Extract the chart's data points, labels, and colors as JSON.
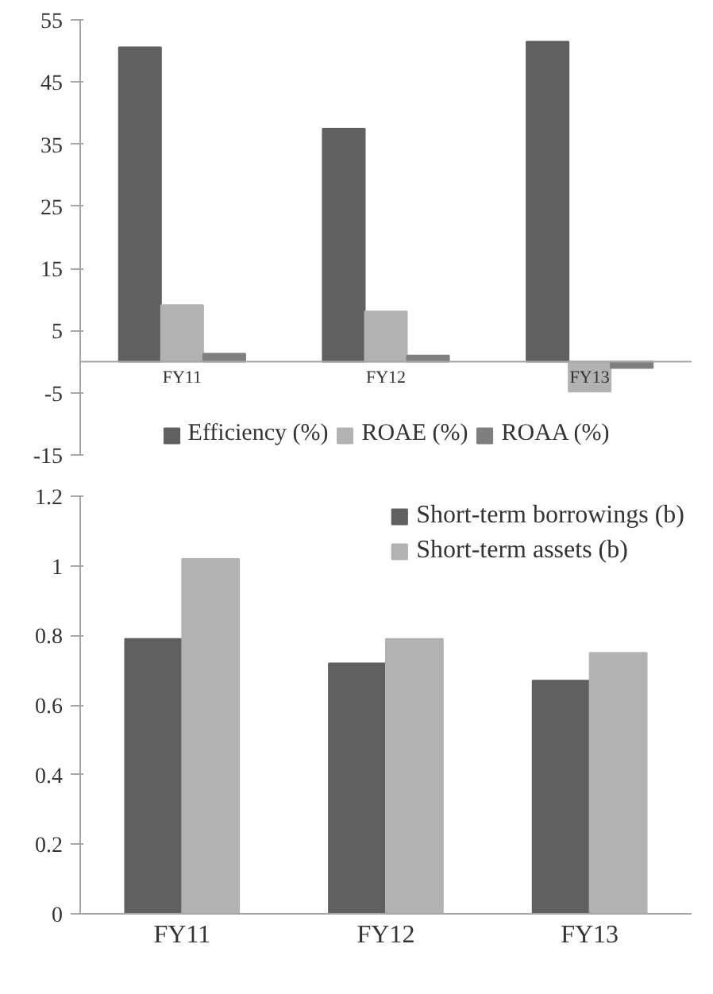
{
  "chart_data": [
    {
      "type": "bar",
      "categories": [
        "FY11",
        "FY12",
        "FY13"
      ],
      "ylim": [
        -15,
        55
      ],
      "yticks": [
        -15,
        -5,
        5,
        15,
        25,
        35,
        45,
        55
      ],
      "grid": false,
      "legend": "bottom",
      "series": [
        {
          "name": "Efficiency (%)",
          "color": "#606060",
          "values": [
            50.6,
            37.5,
            51.5
          ]
        },
        {
          "name": "ROAE (%)",
          "color": "#b2b2b2",
          "values": [
            9.1,
            8.1,
            -4.8
          ]
        },
        {
          "name": "ROAA (%)",
          "color": "#7f7f7f",
          "values": [
            1.3,
            1.0,
            -1.0
          ]
        }
      ]
    },
    {
      "type": "bar",
      "categories": [
        "FY11",
        "FY12",
        "FY13"
      ],
      "ylim": [
        0,
        1.2
      ],
      "yticks": [
        0,
        0.2,
        0.4,
        0.6,
        0.8,
        1,
        1.2
      ],
      "grid": false,
      "legend": "top right",
      "series": [
        {
          "name": "Short-term borrowings (b)",
          "color": "#606060",
          "values": [
            0.79,
            0.72,
            0.67
          ]
        },
        {
          "name": "Short-term assets (b)",
          "color": "#b2b2b2",
          "values": [
            1.02,
            0.79,
            0.75
          ]
        }
      ]
    }
  ]
}
